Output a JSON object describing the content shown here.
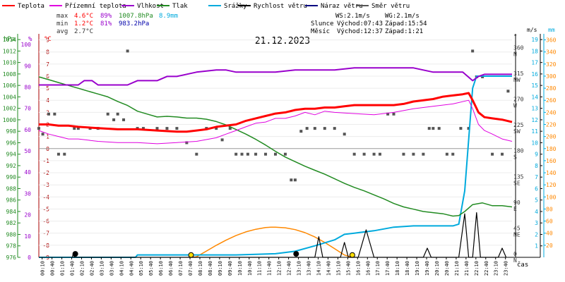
{
  "chart_data": {
    "type": "line",
    "title": "21.12.2023",
    "legend": [
      {
        "key": "temp",
        "label": "Teplota",
        "color": "#ff0000"
      },
      {
        "key": "feels",
        "label": "Přízemní teplota",
        "color": "#e000e0"
      },
      {
        "key": "hum",
        "label": "Vlhkost",
        "color": "#9900cc"
      },
      {
        "key": "press",
        "label": "Tlak",
        "color": "#228b22"
      },
      {
        "key": "rain",
        "label": "Srážky",
        "color": "#00aadd"
      },
      {
        "key": "wind",
        "label": "Rychlost větru",
        "color": "#000000"
      },
      {
        "key": "gust",
        "label": "Náraz větru",
        "color": "#000080"
      },
      {
        "key": "dir",
        "label": "Směr větru",
        "color": "#555555"
      }
    ],
    "stats": {
      "max": {
        "label": "max",
        "temp": "4.6°C",
        "hum": "89%",
        "press": "1007.8hPa",
        "rain": "8.9mm"
      },
      "min": {
        "label": "min",
        "temp": "1.2°C",
        "hum": "81%",
        "press": "983.2hPa"
      },
      "avg": {
        "label": "avg",
        "temp": "2.7°C"
      }
    },
    "info": {
      "ws": "WS:2.1m/s",
      "wg": "WG:2.1m/s",
      "sun_label": "Slunce",
      "sunrise": "Východ:07:43",
      "sunset": "Západ:15:54",
      "moon_label": "Měsíc",
      "moonrise": "Východ:12:37",
      "moonset": "Západ:1:21"
    },
    "axis_units": {
      "press": "hPa",
      "hum": "%",
      "temp": "°C",
      "dir": "°",
      "wind": "m/s",
      "rain": "mm"
    },
    "xlabel": "čas",
    "x_ticks": [
      "00:10",
      "00:40",
      "01:10",
      "01:40",
      "02:10",
      "02:40",
      "03:10",
      "03:40",
      "04:10",
      "04:40",
      "05:10",
      "05:40",
      "06:10",
      "06:40",
      "07:10",
      "07:40",
      "08:10",
      "08:40",
      "09:10",
      "09:40",
      "10:10",
      "10:40",
      "11:10",
      "11:40",
      "12:10",
      "12:40",
      "13:10",
      "13:40",
      "14:10",
      "14:40",
      "15:10",
      "15:40",
      "16:10",
      "16:40",
      "17:10",
      "17:40",
      "18:10",
      "18:40",
      "19:10",
      "19:40",
      "20:10",
      "20:40",
      "21:10",
      "21:40",
      "22:10",
      "22:40",
      "23:10",
      "23:40"
    ],
    "press_ticks": [
      "976",
      "978",
      "980",
      "982",
      "984",
      "986",
      "988",
      "990",
      "992",
      "994",
      "996",
      "998",
      "1000",
      "1002",
      "1004",
      "1006",
      "1008",
      "1010",
      "1012",
      "1014"
    ],
    "hum_ticks": [
      "0",
      "10",
      "20",
      "30",
      "40",
      "50",
      "60",
      "70",
      "80",
      "90",
      "100"
    ],
    "temp_ticks": [
      "-9",
      "-8",
      "-7",
      "-6",
      "-5",
      "-4",
      "-3",
      "-2",
      "-1",
      "0",
      "1",
      "2",
      "3",
      "4",
      "5",
      "6",
      "7",
      "8",
      "9"
    ],
    "dir_ticks": [
      {
        "deg": "0",
        "name": "N"
      },
      {
        "deg": "45",
        "name": "NE"
      },
      {
        "deg": "90",
        "name": "E"
      },
      {
        "deg": "135",
        "name": "SE"
      },
      {
        "deg": "180",
        "name": "S"
      },
      {
        "deg": "225",
        "name": "SW"
      },
      {
        "deg": "270",
        "name": "W"
      },
      {
        "deg": "315",
        "name": "NW"
      },
      {
        "deg": "360",
        "name": "N"
      }
    ],
    "wind_ticks": [
      "1",
      "2",
      "3",
      "4",
      "5",
      "6",
      "7",
      "8",
      "9",
      "10",
      "11",
      "12",
      "13",
      "14",
      "15",
      "16",
      "17",
      "18",
      "19"
    ],
    "rain_ticks": [
      "20",
      "40",
      "60",
      "80",
      "100",
      "120",
      "140",
      "160",
      "180",
      "200",
      "220",
      "240",
      "260",
      "280",
      "300",
      "320",
      "340",
      "360"
    ],
    "ranges": {
      "temp": [
        -9,
        9.5
      ],
      "press": [
        976,
        1015
      ],
      "hum": [
        0,
        105
      ],
      "wind": [
        0,
        19.5
      ],
      "rain": [
        0,
        370
      ],
      "dir": [
        0,
        390
      ],
      "hours": [
        0,
        24
      ]
    },
    "series": {
      "temp": [
        [
          0,
          2.0
        ],
        [
          0.5,
          2.0
        ],
        [
          1,
          1.9
        ],
        [
          1.5,
          1.9
        ],
        [
          2,
          1.8
        ],
        [
          3,
          1.7
        ],
        [
          4,
          1.6
        ],
        [
          5,
          1.6
        ],
        [
          6,
          1.5
        ],
        [
          7,
          1.4
        ],
        [
          7.5,
          1.4
        ],
        [
          8,
          1.5
        ],
        [
          8.5,
          1.6
        ],
        [
          9,
          1.8
        ],
        [
          10,
          2.0
        ],
        [
          10.5,
          2.3
        ],
        [
          11,
          2.5
        ],
        [
          11.5,
          2.7
        ],
        [
          12,
          2.9
        ],
        [
          12.5,
          3.0
        ],
        [
          13,
          3.2
        ],
        [
          13.5,
          3.3
        ],
        [
          14,
          3.3
        ],
        [
          14.5,
          3.4
        ],
        [
          15,
          3.4
        ],
        [
          15.5,
          3.5
        ],
        [
          16,
          3.6
        ],
        [
          17,
          3.6
        ],
        [
          18,
          3.6
        ],
        [
          18.5,
          3.7
        ],
        [
          19,
          3.9
        ],
        [
          20,
          4.1
        ],
        [
          20.5,
          4.3
        ],
        [
          21,
          4.4
        ],
        [
          21.5,
          4.5
        ],
        [
          21.8,
          4.6
        ],
        [
          22,
          4.0
        ],
        [
          22.3,
          3.0
        ],
        [
          22.6,
          2.6
        ],
        [
          23,
          2.5
        ],
        [
          23.5,
          2.4
        ],
        [
          24,
          2.2
        ]
      ],
      "feels": [
        [
          0,
          1.5
        ],
        [
          0.5,
          1.2
        ],
        [
          1,
          1.0
        ],
        [
          1.5,
          0.8
        ],
        [
          2,
          0.8
        ],
        [
          2.5,
          0.7
        ],
        [
          3,
          0.6
        ],
        [
          4,
          0.5
        ],
        [
          5,
          0.5
        ],
        [
          6,
          0.4
        ],
        [
          7,
          0.5
        ],
        [
          8,
          0.6
        ],
        [
          9,
          0.9
        ],
        [
          9.5,
          1.2
        ],
        [
          10,
          1.5
        ],
        [
          10.5,
          1.8
        ],
        [
          11,
          2.1
        ],
        [
          11.5,
          2.2
        ],
        [
          12,
          2.5
        ],
        [
          12.5,
          2.5
        ],
        [
          13,
          2.7
        ],
        [
          13.5,
          3.0
        ],
        [
          14,
          2.8
        ],
        [
          14.5,
          3.1
        ],
        [
          15,
          3.0
        ],
        [
          16,
          2.9
        ],
        [
          17,
          2.8
        ],
        [
          18,
          3.0
        ],
        [
          19,
          3.3
        ],
        [
          20,
          3.5
        ],
        [
          21,
          3.7
        ],
        [
          21.8,
          4.0
        ],
        [
          22,
          3.3
        ],
        [
          22.3,
          2.0
        ],
        [
          22.6,
          1.5
        ],
        [
          23,
          1.2
        ],
        [
          23.5,
          0.8
        ],
        [
          24,
          0.6
        ]
      ],
      "hum": [
        [
          0,
          81
        ],
        [
          0.5,
          81
        ],
        [
          1,
          81
        ],
        [
          1.5,
          81
        ],
        [
          2,
          81
        ],
        [
          2.3,
          83
        ],
        [
          2.7,
          83
        ],
        [
          3,
          81
        ],
        [
          3.5,
          81
        ],
        [
          4,
          81
        ],
        [
          4.5,
          81
        ],
        [
          5,
          83
        ],
        [
          6,
          83
        ],
        [
          6.5,
          85
        ],
        [
          7,
          85
        ],
        [
          8,
          87
        ],
        [
          9,
          88
        ],
        [
          9.5,
          88
        ],
        [
          10,
          87
        ],
        [
          11,
          87
        ],
        [
          11.5,
          87
        ],
        [
          12,
          87
        ],
        [
          13,
          88
        ],
        [
          13.5,
          88
        ],
        [
          14,
          88
        ],
        [
          15,
          88
        ],
        [
          16,
          89
        ],
        [
          17,
          89
        ],
        [
          18,
          89
        ],
        [
          19,
          89
        ],
        [
          20,
          87
        ],
        [
          21,
          87
        ],
        [
          21.5,
          87
        ],
        [
          22,
          83
        ],
        [
          22.3,
          85
        ],
        [
          22.6,
          86
        ],
        [
          23,
          86
        ],
        [
          24,
          86
        ]
      ],
      "press": [
        [
          0,
          1007.5
        ],
        [
          0.5,
          1007
        ],
        [
          1,
          1006.5
        ],
        [
          1.5,
          1006
        ],
        [
          2,
          1005.5
        ],
        [
          2.5,
          1005
        ],
        [
          3,
          1004.5
        ],
        [
          3.5,
          1004
        ],
        [
          4,
          1003.2
        ],
        [
          4.5,
          1002.5
        ],
        [
          5,
          1001.5
        ],
        [
          5.5,
          1001
        ],
        [
          6,
          1000.5
        ],
        [
          6.5,
          1000.6
        ],
        [
          7,
          1000.5
        ],
        [
          7.5,
          1000.3
        ],
        [
          8,
          1000.3
        ],
        [
          8.5,
          1000.1
        ],
        [
          9,
          999.7
        ],
        [
          9.5,
          999.1
        ],
        [
          10,
          998.3
        ],
        [
          10.5,
          997.5
        ],
        [
          11,
          996.6
        ],
        [
          11.5,
          995.6
        ],
        [
          12,
          994.5
        ],
        [
          12.5,
          993.5
        ],
        [
          13,
          992.7
        ],
        [
          13.5,
          991.9
        ],
        [
          14,
          991.2
        ],
        [
          14.5,
          990.5
        ],
        [
          15,
          989.7
        ],
        [
          15.5,
          988.9
        ],
        [
          16,
          988.2
        ],
        [
          16.5,
          987.6
        ],
        [
          17,
          986.9
        ],
        [
          17.5,
          986.2
        ],
        [
          18,
          985.4
        ],
        [
          18.5,
          984.8
        ],
        [
          19,
          984.4
        ],
        [
          19.5,
          984.0
        ],
        [
          20,
          983.8
        ],
        [
          20.5,
          983.6
        ],
        [
          21,
          983.2
        ],
        [
          21.3,
          983.3
        ],
        [
          21.6,
          984.0
        ],
        [
          22,
          985.2
        ],
        [
          22.5,
          985.5
        ],
        [
          23,
          985.0
        ],
        [
          23.5,
          985.0
        ],
        [
          24,
          984.8
        ]
      ],
      "rain": [
        [
          0,
          0
        ],
        [
          4.9,
          0
        ],
        [
          5,
          4
        ],
        [
          10,
          4
        ],
        [
          12,
          6
        ],
        [
          13,
          10
        ],
        [
          14,
          19
        ],
        [
          15,
          29
        ],
        [
          15.5,
          38
        ],
        [
          16,
          40
        ],
        [
          17,
          44
        ],
        [
          18,
          50
        ],
        [
          19,
          52
        ],
        [
          20,
          52
        ],
        [
          21,
          52
        ],
        [
          21.3,
          55
        ],
        [
          21.6,
          110
        ],
        [
          22,
          280
        ],
        [
          22.2,
          300
        ],
        [
          24,
          300
        ]
      ],
      "wind": [
        [
          1.7,
          0
        ],
        [
          1.75,
          0.4
        ],
        [
          1.8,
          0
        ],
        [
          14,
          0
        ],
        [
          14.2,
          1.8
        ],
        [
          14.4,
          0
        ],
        [
          15.3,
          0
        ],
        [
          15.5,
          1.3
        ],
        [
          15.7,
          0
        ],
        [
          16.2,
          0
        ],
        [
          16.6,
          2.4
        ],
        [
          17.0,
          0
        ],
        [
          19.5,
          0
        ],
        [
          19.7,
          0.8
        ],
        [
          19.9,
          0
        ],
        [
          21.3,
          0
        ],
        [
          21.6,
          3.8
        ],
        [
          21.8,
          0
        ],
        [
          22,
          0
        ],
        [
          22.2,
          3.9
        ],
        [
          22.4,
          0
        ],
        [
          23.3,
          0
        ],
        [
          23.5,
          0.8
        ],
        [
          23.7,
          0
        ]
      ],
      "sun": [
        [
          7.72,
          0
        ],
        [
          8,
          0.05
        ],
        [
          8.5,
          0.55
        ],
        [
          9,
          1.05
        ],
        [
          9.5,
          1.5
        ],
        [
          10,
          1.9
        ],
        [
          10.5,
          2.22
        ],
        [
          11,
          2.45
        ],
        [
          11.5,
          2.6
        ],
        [
          11.8,
          2.63
        ],
        [
          12,
          2.63
        ],
        [
          12.5,
          2.58
        ],
        [
          13,
          2.42
        ],
        [
          13.5,
          2.15
        ],
        [
          14,
          1.78
        ],
        [
          14.5,
          1.3
        ],
        [
          15,
          0.75
        ],
        [
          15.5,
          0.2
        ],
        [
          15.9,
          0
        ]
      ],
      "dir": [
        [
          0,
          225
        ],
        [
          0.2,
          215
        ],
        [
          0.5,
          250
        ],
        [
          0.8,
          250
        ],
        [
          1,
          180
        ],
        [
          1.3,
          180
        ],
        [
          1.8,
          225
        ],
        [
          2,
          225
        ],
        [
          2.6,
          225
        ],
        [
          3,
          225
        ],
        [
          3.5,
          250
        ],
        [
          3.8,
          240
        ],
        [
          4,
          250
        ],
        [
          4.3,
          240
        ],
        [
          4.5,
          360
        ],
        [
          5,
          225
        ],
        [
          5.3,
          225
        ],
        [
          6,
          225
        ],
        [
          6.5,
          225
        ],
        [
          7,
          225
        ],
        [
          7.5,
          200
        ],
        [
          8,
          180
        ],
        [
          8.5,
          225
        ],
        [
          9,
          225
        ],
        [
          9.3,
          205
        ],
        [
          9.7,
          225
        ],
        [
          10,
          180
        ],
        [
          10.3,
          180
        ],
        [
          10.6,
          180
        ],
        [
          11,
          180
        ],
        [
          11.5,
          180
        ],
        [
          12,
          180
        ],
        [
          12.5,
          180
        ],
        [
          12.8,
          135
        ],
        [
          13,
          135
        ],
        [
          13.3,
          220
        ],
        [
          13.6,
          225
        ],
        [
          14,
          225
        ],
        [
          14.5,
          225
        ],
        [
          15,
          225
        ],
        [
          15.5,
          215
        ],
        [
          16,
          180
        ],
        [
          16.5,
          180
        ],
        [
          17,
          180
        ],
        [
          17.3,
          180
        ],
        [
          17.7,
          250
        ],
        [
          18,
          250
        ],
        [
          18.5,
          180
        ],
        [
          19,
          180
        ],
        [
          19.5,
          180
        ],
        [
          19.8,
          225
        ],
        [
          20,
          225
        ],
        [
          20.3,
          225
        ],
        [
          20.7,
          180
        ],
        [
          21,
          180
        ],
        [
          21.4,
          225
        ],
        [
          21.8,
          225
        ],
        [
          22,
          360
        ],
        [
          22.2,
          315
        ],
        [
          22.5,
          315
        ],
        [
          23,
          180
        ],
        [
          23.5,
          180
        ],
        [
          23.8,
          290
        ]
      ],
      "points": [
        {
          "series": "wind",
          "x": 1.85,
          "y": 0.3,
          "color": "#000000"
        },
        {
          "series": "wind",
          "x": 13.05,
          "y": 0.3,
          "color": "#000000"
        },
        {
          "series": "sun",
          "x": 7.72,
          "y": 0.2,
          "color": "#ffdd00"
        },
        {
          "series": "sun",
          "x": 15.9,
          "y": 0.2,
          "color": "#ffdd00"
        }
      ]
    }
  }
}
